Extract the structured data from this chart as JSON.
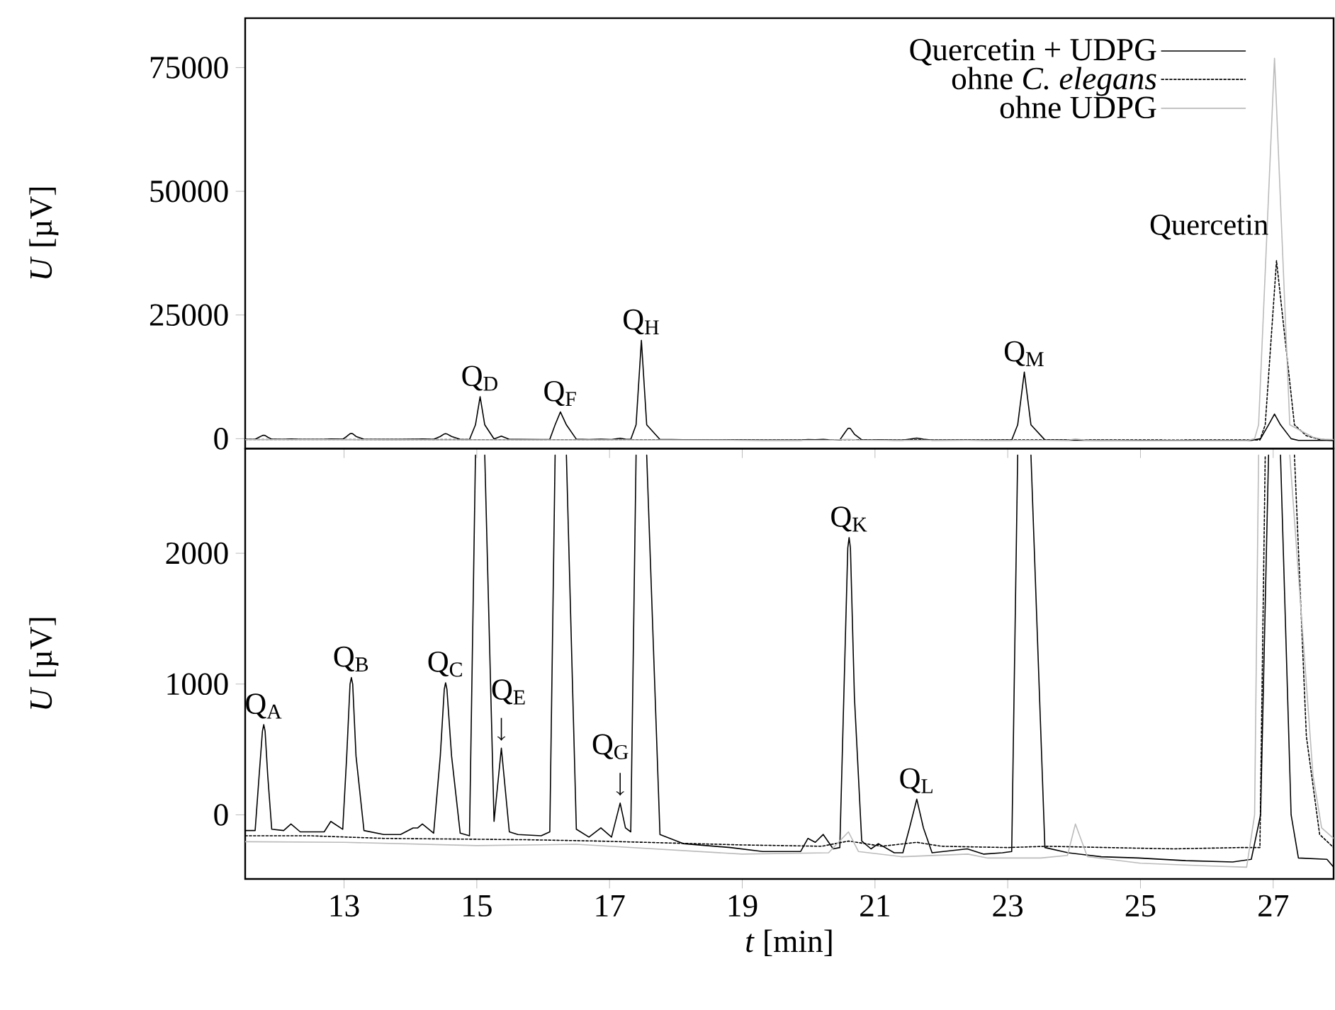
{
  "chart_data": [
    {
      "type": "line",
      "xlim": [
        11.51,
        27.91
      ],
      "ylim": [
        -2000,
        85000
      ],
      "xticks": [
        13,
        15,
        17,
        19,
        21,
        23,
        25,
        27
      ],
      "yticks": [
        0,
        25000,
        50000,
        75000
      ],
      "ylabel": "*U* [µV]",
      "tick_labels": "y",
      "legend": "top right",
      "marker": "none",
      "series": [
        {
          "name": "Quercetin + UDPG",
          "color": "#000000",
          "line_style": "solid",
          "x": [
            11.51,
            11.66,
            11.72,
            11.77,
            11.79,
            11.81,
            11.85,
            11.91,
            12.09,
            12.2,
            12.34,
            12.7,
            12.8,
            12.98,
            13.04,
            13.09,
            13.11,
            13.13,
            13.18,
            13.3,
            13.6,
            13.85,
            14.04,
            14.11,
            14.18,
            14.35,
            14.45,
            14.51,
            14.53,
            14.55,
            14.62,
            14.75,
            14.89,
            14.98,
            15.05,
            15.12,
            15.26,
            15.37,
            15.49,
            15.62,
            15.97,
            16.1,
            16.18,
            16.26,
            16.35,
            16.5,
            16.69,
            16.87,
            17.03,
            17.16,
            17.24,
            17.32,
            17.4,
            17.48,
            17.56,
            17.76,
            18.11,
            18.82,
            19.31,
            19.88,
            19.99,
            20.1,
            20.22,
            20.37,
            20.47,
            20.53,
            20.59,
            20.61,
            20.63,
            20.69,
            20.8,
            20.94,
            21.05,
            21.29,
            21.42,
            21.52,
            21.63,
            21.73,
            21.86,
            22.39,
            22.64,
            22.92,
            23.06,
            23.15,
            23.25,
            23.35,
            23.56,
            23.91,
            24.41,
            24.97,
            25.68,
            26.39,
            26.67,
            26.81,
            26.93,
            27.02,
            27.11,
            27.27,
            27.38,
            27.81,
            27.91
          ],
          "values": [
            -120,
            -120,
            300,
            640,
            690,
            640,
            300,
            -110,
            -120,
            -70,
            -130,
            -130,
            -50,
            -110,
            450,
            1000,
            1050,
            1000,
            450,
            -120,
            -150,
            -150,
            -100,
            -100,
            -70,
            -140,
            450,
            960,
            1010,
            960,
            450,
            -140,
            -160,
            2800,
            8480,
            2800,
            -50,
            510,
            -130,
            -150,
            -160,
            -130,
            2800,
            5410,
            2800,
            -110,
            -170,
            -100,
            -170,
            90,
            -100,
            -130,
            2800,
            19880,
            2800,
            -150,
            -220,
            -250,
            -280,
            -280,
            -180,
            -210,
            -150,
            -260,
            -250,
            900,
            2040,
            2120,
            2040,
            900,
            -200,
            -260,
            -220,
            -290,
            -290,
            -100,
            120,
            -100,
            -290,
            -260,
            -300,
            -290,
            -280,
            2800,
            13450,
            2800,
            -250,
            -290,
            -320,
            -330,
            -350,
            -360,
            -340,
            0,
            2800,
            4970,
            2800,
            0,
            -330,
            -340,
            -400
          ]
        },
        {
          "name": "ohne *C. elegans*",
          "color": "#000000",
          "line_style": "dotted",
          "x": [
            11.51,
            12.5,
            13.6,
            15.75,
            16.8,
            19,
            20.2,
            20.6,
            21.1,
            21.63,
            22,
            23,
            23.6,
            24.5,
            25.5,
            26.5,
            26.8,
            26.88,
            27.05,
            27.32,
            27.5,
            27.7,
            27.91
          ],
          "values": [
            -160,
            -160,
            -180,
            -190,
            -200,
            -230,
            -240,
            -200,
            -240,
            -210,
            -240,
            -250,
            -240,
            -250,
            -260,
            -250,
            -250,
            2800,
            35970,
            2800,
            600,
            -150,
            -250
          ]
        },
        {
          "name": "ohne UDPG",
          "color": "#bbbbbb",
          "line_style": "solid",
          "x": [
            11.51,
            13,
            15,
            16.5,
            17,
            19,
            20.3,
            20.6,
            20.75,
            21.4,
            22.4,
            22.7,
            23.5,
            23.9,
            24.02,
            24.2,
            25,
            26,
            26.6,
            26.72,
            26.78,
            27.02,
            27.25,
            27.6,
            27.73,
            27.91
          ],
          "values": [
            -205,
            -210,
            -235,
            -225,
            -240,
            -300,
            -290,
            -130,
            -280,
            -320,
            -300,
            -330,
            -330,
            -310,
            -70,
            -320,
            -370,
            -390,
            -400,
            0,
            2800,
            76900,
            2800,
            300,
            -100,
            -180
          ]
        }
      ],
      "annotations": [
        {
          "text": "Q$_{D}$",
          "x": 15.05,
          "y": 8480
        },
        {
          "text": "Q$_{F}$",
          "x": 16.26,
          "y": 5410
        },
        {
          "text": "Q$_{H}$",
          "x": 17.48,
          "y": 19880
        },
        {
          "text": "Q$_{M}$",
          "x": 23.25,
          "y": 13450
        },
        {
          "text": "Quercetin",
          "x": 27.05,
          "y": 35970
        }
      ]
    },
    {
      "type": "line",
      "xlim": [
        11.51,
        27.91
      ],
      "ylim": [
        -490,
        2800
      ],
      "xticks": [
        13,
        15,
        17,
        19,
        21,
        23,
        25,
        27
      ],
      "yticks": [
        0,
        1000,
        2000
      ],
      "xlabel": "*t* [min]",
      "ylabel": "*U* [µV]",
      "marker": "none",
      "series": [
        {
          "color": "#000000",
          "line_style": "solid",
          "x": [
            11.51,
            11.66,
            11.72,
            11.77,
            11.79,
            11.81,
            11.85,
            11.91,
            12.09,
            12.2,
            12.34,
            12.7,
            12.8,
            12.98,
            13.04,
            13.09,
            13.11,
            13.13,
            13.18,
            13.3,
            13.6,
            13.85,
            14.04,
            14.11,
            14.18,
            14.35,
            14.45,
            14.51,
            14.53,
            14.55,
            14.62,
            14.75,
            14.89,
            14.98,
            15.05,
            15.12,
            15.26,
            15.37,
            15.49,
            15.62,
            15.97,
            16.1,
            16.18,
            16.26,
            16.35,
            16.5,
            16.69,
            16.87,
            17.03,
            17.16,
            17.24,
            17.32,
            17.4,
            17.48,
            17.56,
            17.76,
            18.11,
            18.82,
            19.31,
            19.88,
            19.99,
            20.1,
            20.22,
            20.37,
            20.47,
            20.53,
            20.59,
            20.61,
            20.63,
            20.69,
            20.8,
            20.94,
            21.05,
            21.29,
            21.42,
            21.52,
            21.63,
            21.73,
            21.86,
            22.39,
            22.64,
            22.92,
            23.06,
            23.15,
            23.25,
            23.35,
            23.56,
            23.91,
            24.41,
            24.97,
            25.68,
            26.39,
            26.67,
            26.81,
            26.93,
            27.02,
            27.11,
            27.27,
            27.38,
            27.81,
            27.91
          ],
          "values": [
            -120,
            -120,
            300,
            640,
            690,
            640,
            300,
            -110,
            -120,
            -70,
            -130,
            -130,
            -50,
            -110,
            450,
            1000,
            1050,
            1000,
            450,
            -120,
            -150,
            -150,
            -100,
            -100,
            -70,
            -140,
            450,
            960,
            1010,
            960,
            450,
            -140,
            -160,
            2750,
            null,
            2750,
            -50,
            510,
            -130,
            -150,
            -160,
            -130,
            2750,
            null,
            2750,
            -110,
            -170,
            -100,
            -170,
            90,
            -100,
            -130,
            2750,
            null,
            2750,
            -150,
            -220,
            -250,
            -280,
            -280,
            -180,
            -210,
            -150,
            -260,
            -250,
            900,
            2040,
            2120,
            2040,
            900,
            -200,
            -260,
            -220,
            -290,
            -290,
            -100,
            120,
            -100,
            -290,
            -260,
            -300,
            -290,
            -280,
            2750,
            null,
            2750,
            -250,
            -290,
            -320,
            -330,
            -350,
            -360,
            -340,
            0,
            2750,
            null,
            2750,
            0,
            -330,
            -340,
            -400
          ]
        },
        {
          "color": "#000000",
          "line_style": "dotted",
          "x": [
            11.51,
            12.5,
            13.6,
            15.75,
            16.8,
            19,
            20.2,
            20.6,
            21.1,
            21.63,
            22,
            23,
            23.6,
            24.5,
            25.5,
            26.5,
            26.8,
            26.88,
            27.05,
            27.32,
            27.5,
            27.7,
            27.91
          ],
          "values": [
            -160,
            -160,
            -180,
            -190,
            -200,
            -230,
            -240,
            -200,
            -240,
            -210,
            -240,
            -250,
            -240,
            -250,
            -260,
            -250,
            -250,
            2750,
            null,
            2750,
            600,
            -150,
            -250
          ]
        },
        {
          "color": "#bbbbbb",
          "line_style": "solid",
          "x": [
            11.51,
            13,
            15,
            16.5,
            17,
            19,
            20.3,
            20.6,
            20.75,
            21.4,
            22.4,
            22.7,
            23.5,
            23.9,
            24.02,
            24.2,
            25,
            26,
            26.6,
            26.72,
            26.78,
            27.02,
            27.25,
            27.6,
            27.73,
            27.91
          ],
          "values": [
            -205,
            -210,
            -235,
            -225,
            -240,
            -300,
            -290,
            -130,
            -280,
            -320,
            -300,
            -330,
            -330,
            -310,
            -70,
            -320,
            -370,
            -390,
            -400,
            0,
            2750,
            null,
            2750,
            300,
            -100,
            -180
          ]
        }
      ],
      "annotations": [
        {
          "text": "Q$_{A}$",
          "x": 11.79,
          "y": 690
        },
        {
          "text": "Q$_{B}$",
          "x": 13.11,
          "y": 1050
        },
        {
          "text": "Q$_{C}$",
          "x": 14.53,
          "y": 1010
        },
        {
          "text": "Q$_{E}$",
          "x": 15.37,
          "y": 510
        },
        {
          "text": "Q$_{G}$",
          "x": 17.16,
          "y": 90
        },
        {
          "text": "Q$_{K}$",
          "x": 20.61,
          "y": 2120
        },
        {
          "text": "Q$_{L}$",
          "x": 21.63,
          "y": 120
        }
      ]
    }
  ]
}
